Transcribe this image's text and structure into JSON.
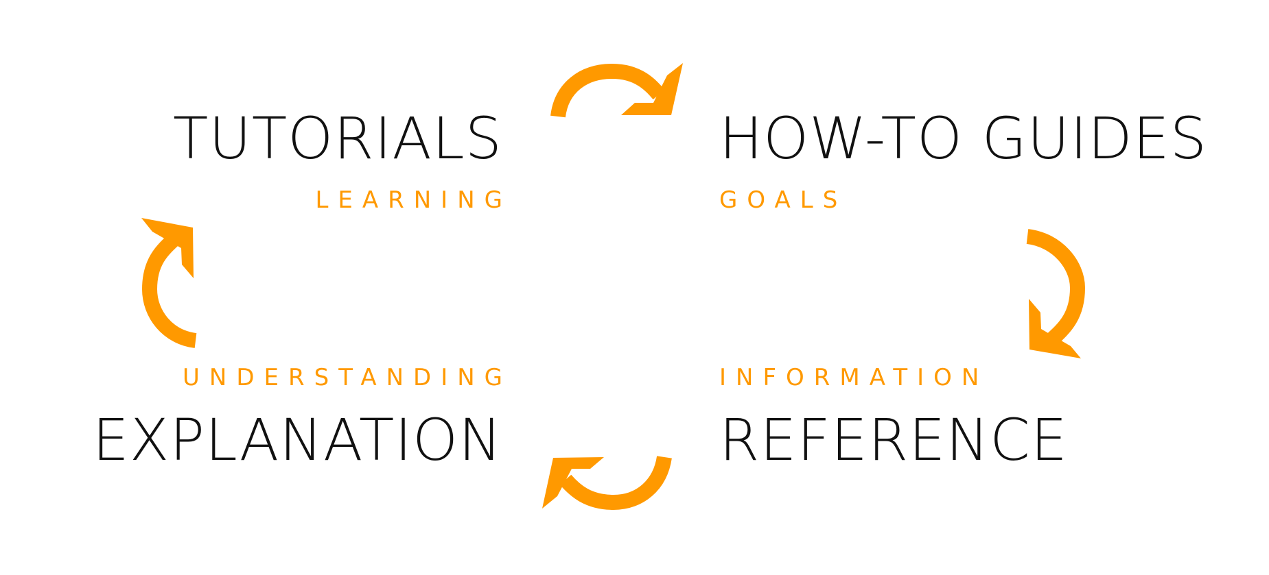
{
  "quadrants": {
    "tutorials": {
      "title": "TUTORIALS",
      "subtitle": "LEARNING"
    },
    "howto": {
      "title": "HOW-TO GUIDES",
      "subtitle": "GOALS"
    },
    "explanation": {
      "title": "EXPLANATION",
      "subtitle": "UNDERSTANDING"
    },
    "reference": {
      "title": "REFERENCE",
      "subtitle": "INFORMATION"
    }
  },
  "colors": {
    "title": "#111111",
    "accent": "#ff9900",
    "background": "#ffffff"
  },
  "arrows": [
    {
      "name": "top-arrow-icon",
      "direction": "clockwise",
      "from": "tutorials",
      "to": "howto"
    },
    {
      "name": "right-arrow-icon",
      "direction": "clockwise",
      "from": "howto",
      "to": "reference"
    },
    {
      "name": "bottom-arrow-icon",
      "direction": "clockwise",
      "from": "reference",
      "to": "explanation"
    },
    {
      "name": "left-arrow-icon",
      "direction": "clockwise",
      "from": "explanation",
      "to": "tutorials"
    }
  ]
}
